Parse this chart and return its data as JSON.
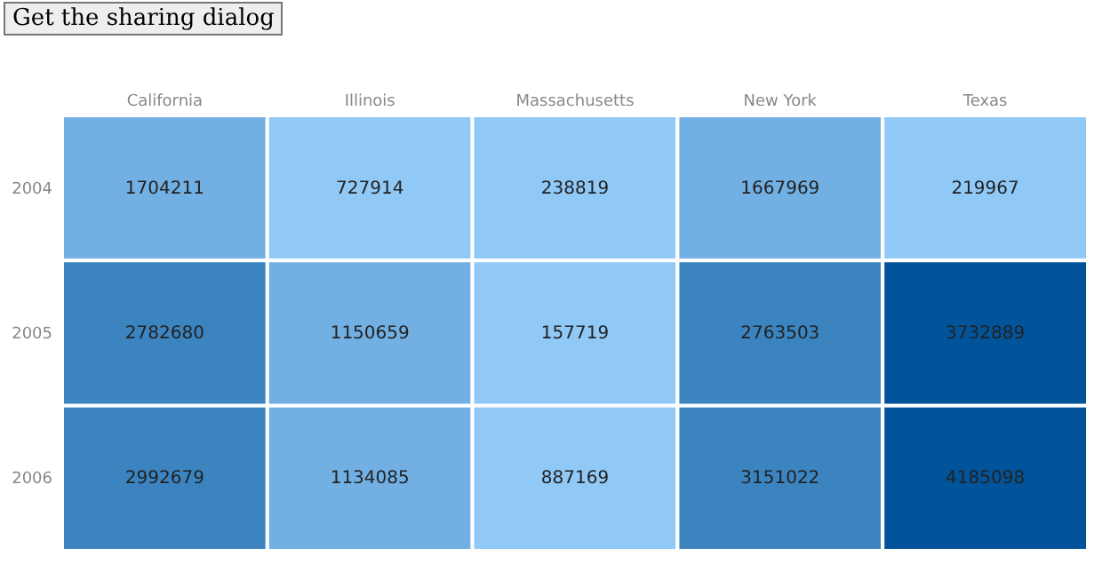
{
  "chart_data": {
    "type": "heatmap",
    "categories": [
      "California",
      "Illinois",
      "Massachusetts",
      "New York",
      "Texas"
    ],
    "y_categories": [
      "2004",
      "2005",
      "2006"
    ],
    "cells": [
      [
        1704211,
        727914,
        238819,
        1667969,
        219967
      ],
      [
        2782680,
        1150659,
        157719,
        2763503,
        3732889
      ],
      [
        2992679,
        1134085,
        887169,
        3151022,
        4185098
      ]
    ],
    "colors": [
      [
        "#72b0e4",
        "#90c8f6",
        "#90c8f6",
        "#72b0e4",
        "#90c8f6"
      ],
      [
        "#3b84c0",
        "#72b0e4",
        "#90c8f6",
        "#3b84c0",
        "#02549a"
      ],
      [
        "#3b84c0",
        "#72b0e4",
        "#90c8f6",
        "#3b84c0",
        "#02549a"
      ]
    ],
    "data_labels": true,
    "annotations": [
      "Get the sharing dialog"
    ]
  }
}
